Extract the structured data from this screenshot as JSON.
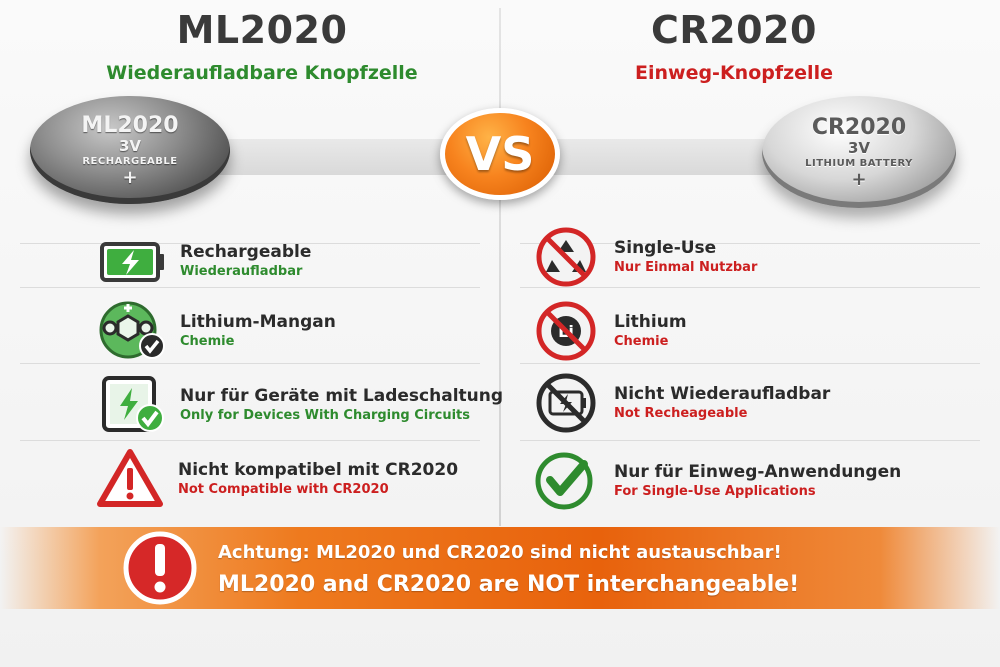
{
  "left": {
    "title": "ML2020",
    "subtitle": "Wiederaufladbare Knopfzelle",
    "coin": {
      "model": "ML2020",
      "voltage": "3V",
      "type": "RECHARGEABLE",
      "polarity": "+"
    },
    "features": [
      {
        "icon": "battery-charging-icon",
        "en": "Rechargeable",
        "de": "Wiederaufladbar"
      },
      {
        "icon": "chemistry-molecule-check-icon",
        "en": "Lithium-Mangan",
        "de": "Chemie"
      },
      {
        "icon": "device-charging-check-icon",
        "en": "Nur für Geräte mit Ladeschaltung",
        "de": "Only for Devices With Charging Circuits"
      },
      {
        "icon": "warning-triangle-icon",
        "en": "Nicht kompatibel mit CR2020",
        "de": "Not Compatible with CR2020"
      }
    ]
  },
  "vs_label": "VS",
  "right": {
    "title": "CR2020",
    "subtitle": "Einweg-Knopfzelle",
    "coin": {
      "model": "CR2020",
      "voltage": "3V",
      "type": "LITHIUM BATTERY",
      "polarity": "+"
    },
    "features": [
      {
        "icon": "no-recycle-icon",
        "en": "Single-Use",
        "de": "Nur Einmal Nutzbar"
      },
      {
        "icon": "no-lithium-icon",
        "en": "Lithium",
        "de": "Chemie"
      },
      {
        "icon": "no-charging-icon",
        "en": "Nicht Wiederaufladbar",
        "de": "Not Recheageable"
      },
      {
        "icon": "check-circle-icon",
        "en": "Nur für Einweg-Anwendungen",
        "de": "For Single-Use Applications"
      }
    ]
  },
  "warning": {
    "icon": "exclamation-circle-icon",
    "line1": "Achtung: ML2020 und CR2020 sind nicht austauschbar!",
    "line2": "ML2020 and CR2020 are NOT interchangeable!"
  },
  "colors": {
    "green": "#2e8b2e",
    "red": "#cc1f1f",
    "orange": "#ee7a1e"
  }
}
